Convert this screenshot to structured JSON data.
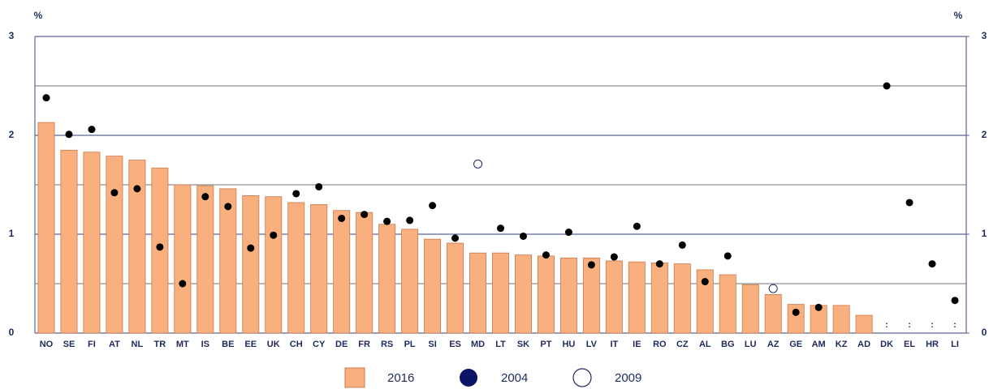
{
  "chart_data": {
    "type": "bar",
    "y_unit": "%",
    "categories": [
      "NO",
      "SE",
      "FI",
      "AT",
      "NL",
      "TR",
      "MT",
      "IS",
      "BE",
      "EE",
      "UK",
      "CH",
      "CY",
      "DE",
      "FR",
      "RS",
      "PL",
      "SI",
      "ES",
      "MD",
      "LT",
      "SK",
      "PT",
      "HU",
      "LV",
      "IT",
      "IE",
      "RO",
      "CZ",
      "AL",
      "BG",
      "LU",
      "AZ",
      "GE",
      "AM",
      "KZ",
      "AD",
      "DK",
      "EL",
      "HR",
      "LI"
    ],
    "series": [
      {
        "name": "2016",
        "mark": "bar",
        "color": "#f9b07e",
        "edge": "#c9794c",
        "values": [
          2.13,
          1.85,
          1.83,
          1.79,
          1.75,
          1.67,
          1.5,
          1.49,
          1.46,
          1.39,
          1.38,
          1.32,
          1.3,
          1.24,
          1.22,
          1.1,
          1.05,
          0.95,
          0.91,
          0.81,
          0.81,
          0.79,
          0.78,
          0.76,
          0.76,
          0.73,
          0.72,
          0.71,
          0.7,
          0.64,
          0.59,
          0.49,
          0.39,
          0.29,
          0.28,
          0.28,
          0.18,
          null,
          null,
          null,
          null
        ]
      },
      {
        "name": "2004",
        "mark": "filled-circle",
        "color": "#000000",
        "values": [
          2.38,
          2.01,
          2.06,
          1.42,
          1.46,
          0.87,
          0.5,
          1.38,
          1.28,
          0.86,
          0.99,
          1.41,
          1.48,
          1.16,
          1.2,
          1.13,
          1.14,
          1.29,
          0.96,
          null,
          1.06,
          0.98,
          0.79,
          1.02,
          0.69,
          0.77,
          1.08,
          0.7,
          0.89,
          0.52,
          0.78,
          null,
          null,
          0.21,
          0.26,
          null,
          null,
          2.5,
          1.32,
          0.7,
          0.33
        ]
      },
      {
        "name": "2009",
        "mark": "open-circle",
        "color": "#1f2a5c",
        "values": [
          null,
          null,
          null,
          null,
          null,
          null,
          null,
          null,
          null,
          null,
          null,
          null,
          null,
          null,
          null,
          null,
          null,
          null,
          null,
          1.71,
          null,
          null,
          null,
          null,
          null,
          null,
          null,
          null,
          null,
          null,
          null,
          null,
          0.45,
          null,
          null,
          null,
          null,
          null,
          null,
          null,
          null
        ]
      }
    ],
    "missing_label": ":",
    "ylim": [
      0,
      3
    ],
    "yticks": [
      0,
      1,
      2,
      3
    ],
    "y2lim": [
      0,
      3
    ],
    "y2ticks": [
      0,
      1,
      2,
      3
    ],
    "minor_grid": [
      0.5,
      1.5,
      2.5
    ],
    "grid": true,
    "legend": "bottom"
  }
}
